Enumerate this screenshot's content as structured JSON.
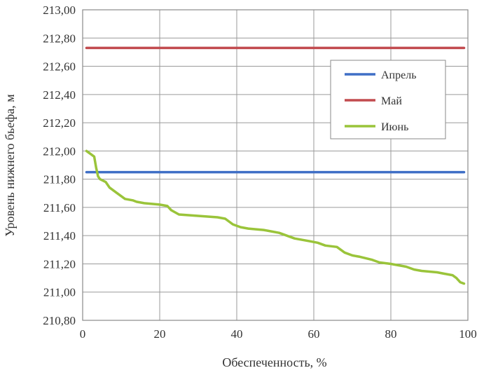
{
  "chart_data": {
    "type": "line",
    "title": "",
    "xlabel": "Обеспеченность, %",
    "ylabel": "Уровень нижнего бьефа, м",
    "xlim": [
      0,
      100
    ],
    "ylim": [
      210.8,
      213.0
    ],
    "xticks": [
      0,
      20,
      40,
      60,
      80,
      100
    ],
    "xtick_labels": [
      "0",
      "20",
      "40",
      "60",
      "80",
      "100"
    ],
    "yticks": [
      210.8,
      211.0,
      211.2,
      211.4,
      211.6,
      211.8,
      212.0,
      212.2,
      212.4,
      212.6,
      212.8,
      213.0
    ],
    "ytick_labels": [
      "210,80",
      "211,00",
      "211,20",
      "211,40",
      "211,60",
      "211,80",
      "212,00",
      "212,20",
      "212,40",
      "212,60",
      "212,80",
      "213,00"
    ],
    "grid": true,
    "legend_position": "upper-right",
    "series": [
      {
        "name": "Апрель",
        "color": "#3f6fc6",
        "x": [
          1,
          99
        ],
        "y": [
          211.85,
          211.85
        ]
      },
      {
        "name": "Май",
        "color": "#c24b4f",
        "x": [
          1,
          99
        ],
        "y": [
          212.73,
          212.73
        ]
      },
      {
        "name": "Июнь",
        "color": "#9ac43a",
        "x": [
          1,
          3,
          3.5,
          4,
          4.5,
          6,
          7,
          9,
          10,
          11,
          13,
          14,
          16,
          20,
          22,
          23,
          25,
          30,
          35,
          37,
          39,
          41,
          43,
          47,
          51,
          53,
          55,
          59,
          61,
          63,
          66,
          68,
          70,
          72,
          75,
          77,
          80,
          82,
          84,
          86,
          88,
          92,
          94,
          96,
          97,
          98,
          99
        ],
        "y": [
          212.0,
          211.96,
          211.88,
          211.82,
          211.8,
          211.78,
          211.74,
          211.7,
          211.68,
          211.66,
          211.65,
          211.64,
          211.63,
          211.62,
          211.61,
          211.58,
          211.55,
          211.54,
          211.53,
          211.52,
          211.48,
          211.46,
          211.45,
          211.44,
          211.42,
          211.4,
          211.38,
          211.36,
          211.35,
          211.33,
          211.32,
          211.28,
          211.26,
          211.25,
          211.23,
          211.21,
          211.2,
          211.19,
          211.18,
          211.16,
          211.15,
          211.14,
          211.13,
          211.12,
          211.1,
          211.07,
          211.06
        ]
      }
    ]
  }
}
